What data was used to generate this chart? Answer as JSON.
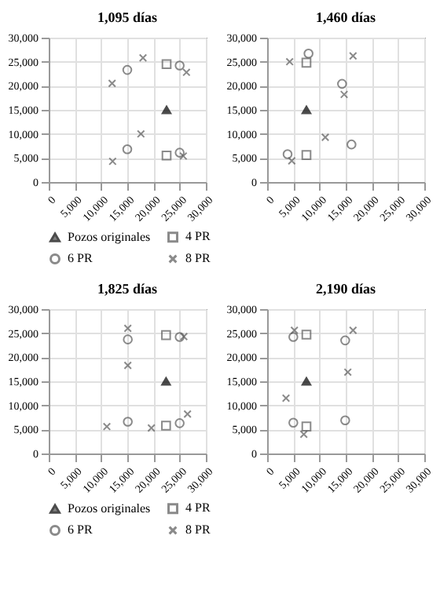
{
  "chart_data": [
    {
      "type": "scatter",
      "title": "1,095 días",
      "xlim": [
        0,
        30000
      ],
      "ylim": [
        0,
        30000
      ],
      "xticks": [
        {
          "value": 0,
          "label": "0"
        },
        {
          "value": 5000,
          "label": "5,000"
        },
        {
          "value": 10000,
          "label": "10,000"
        },
        {
          "value": 15000,
          "label": "15,000"
        },
        {
          "value": 20000,
          "label": "20,000"
        },
        {
          "value": 25000,
          "label": "25,000"
        },
        {
          "value": 30000,
          "label": "30,000"
        }
      ],
      "yticks": [
        {
          "value": 0,
          "label": "0"
        },
        {
          "value": 5000,
          "label": "5,000"
        },
        {
          "value": 10000,
          "label": "10,000"
        },
        {
          "value": 15000,
          "label": "15,000"
        },
        {
          "value": 20000,
          "label": "20,000"
        },
        {
          "value": 25000,
          "label": "25,000"
        },
        {
          "value": 30000,
          "label": "30,000"
        }
      ],
      "grid": true,
      "legend": "bottom",
      "series": [
        {
          "name": "Pozos originales",
          "color": "#000000",
          "marker": "triangle",
          "x": [
            22500
          ],
          "values": [
            15000
          ]
        },
        {
          "name": "4 PR",
          "color": "#595959",
          "marker": "square",
          "x": [
            22500,
            22500
          ],
          "values": [
            24500,
            5500
          ]
        },
        {
          "name": "6 PR",
          "color": "#595959",
          "marker": "circle",
          "x": [
            15000,
            15000,
            25000,
            25000
          ],
          "values": [
            23300,
            6800,
            24200,
            6100
          ]
        },
        {
          "name": "8 PR",
          "color": "#595959",
          "marker": "cross",
          "x": [
            12100,
            18000,
            26300,
            17600,
            12200,
            25700
          ],
          "values": [
            20500,
            25800,
            22800,
            10000,
            4300,
            5400
          ]
        }
      ]
    },
    {
      "type": "scatter",
      "title": "1,460 días",
      "xlim": [
        0,
        30000
      ],
      "ylim": [
        0,
        30000
      ],
      "xticks": [
        {
          "value": 0,
          "label": "0"
        },
        {
          "value": 5000,
          "label": "5,000"
        },
        {
          "value": 10000,
          "label": "10,000"
        },
        {
          "value": 15000,
          "label": "15,000"
        },
        {
          "value": 20000,
          "label": "20,000"
        },
        {
          "value": 25000,
          "label": "25,000"
        },
        {
          "value": 30000,
          "label": "30,000"
        }
      ],
      "yticks": [
        {
          "value": 0,
          "label": "0"
        },
        {
          "value": 5000,
          "label": "5,000"
        },
        {
          "value": 10000,
          "label": "10,000"
        },
        {
          "value": 15000,
          "label": "15,000"
        },
        {
          "value": 20000,
          "label": "20,000"
        },
        {
          "value": 25000,
          "label": "25,000"
        },
        {
          "value": 30000,
          "label": "30,000"
        }
      ],
      "grid": true,
      "legend": "bottom",
      "series": [
        {
          "name": "Pozos originales",
          "color": "#000000",
          "marker": "triangle",
          "x": [
            7500
          ],
          "values": [
            15000
          ]
        },
        {
          "name": "4 PR",
          "color": "#595959",
          "marker": "square",
          "x": [
            7500,
            7500
          ],
          "values": [
            24800,
            5600
          ]
        },
        {
          "name": "6 PR",
          "color": "#595959",
          "marker": "circle",
          "x": [
            7900,
            3900,
            14300,
            16100
          ],
          "values": [
            26700,
            5800,
            20400,
            7800
          ]
        },
        {
          "name": "8 PR",
          "color": "#595959",
          "marker": "cross",
          "x": [
            4300,
            4700,
            14700,
            16400,
            11100
          ],
          "values": [
            25000,
            4400,
            18200,
            26200,
            9300
          ]
        }
      ]
    },
    {
      "type": "scatter",
      "title": "1,825 días",
      "xlim": [
        0,
        30000
      ],
      "ylim": [
        0,
        30000
      ],
      "xticks": [
        {
          "value": 0,
          "label": "0"
        },
        {
          "value": 5000,
          "label": "5,000"
        },
        {
          "value": 10000,
          "label": "10,000"
        },
        {
          "value": 15000,
          "label": "15,000"
        },
        {
          "value": 20000,
          "label": "20,000"
        },
        {
          "value": 25000,
          "label": "25,000"
        },
        {
          "value": 30000,
          "label": "30,000"
        }
      ],
      "yticks": [
        {
          "value": 0,
          "label": "0"
        },
        {
          "value": 5000,
          "label": "5,000"
        },
        {
          "value": 10000,
          "label": "10,000"
        },
        {
          "value": 15000,
          "label": "15,000"
        },
        {
          "value": 20000,
          "label": "20,000"
        },
        {
          "value": 25000,
          "label": "25,000"
        },
        {
          "value": 30000,
          "label": "30,000"
        }
      ],
      "grid": true,
      "legend": "bottom",
      "series": [
        {
          "name": "Pozos originales",
          "color": "#000000",
          "marker": "triangle",
          "x": [
            22400
          ],
          "values": [
            15000
          ]
        },
        {
          "name": "4 PR",
          "color": "#595959",
          "marker": "square",
          "x": [
            22400,
            22400
          ],
          "values": [
            24600,
            5800
          ]
        },
        {
          "name": "6 PR",
          "color": "#595959",
          "marker": "circle",
          "x": [
            15100,
            25000,
            25000,
            15100
          ],
          "values": [
            23700,
            24200,
            6300,
            6600
          ]
        },
        {
          "name": "8 PR",
          "color": "#595959",
          "marker": "cross",
          "x": [
            15100,
            15100,
            25800,
            26500,
            19600,
            11100
          ],
          "values": [
            26000,
            18300,
            24300,
            8200,
            5300,
            5600
          ]
        }
      ]
    },
    {
      "type": "scatter",
      "title": "2,190 días",
      "xlim": [
        0,
        30000
      ],
      "ylim": [
        0,
        30000
      ],
      "xticks": [
        {
          "value": 0,
          "label": "0"
        },
        {
          "value": 5000,
          "label": "5,000"
        },
        {
          "value": 10000,
          "label": "10,000"
        },
        {
          "value": 15000,
          "label": "15,000"
        },
        {
          "value": 20000,
          "label": "20,000"
        },
        {
          "value": 25000,
          "label": "25,000"
        },
        {
          "value": 30000,
          "label": "30,000"
        }
      ],
      "yticks": [
        {
          "value": 0,
          "label": "0"
        },
        {
          "value": 5000,
          "label": "5,000"
        },
        {
          "value": 10000,
          "label": "10,000"
        },
        {
          "value": 15000,
          "label": "15,000"
        },
        {
          "value": 20000,
          "label": "20,000"
        },
        {
          "value": 25000,
          "label": "25,000"
        },
        {
          "value": 30000,
          "label": "30,000"
        }
      ],
      "grid": true,
      "legend": "bottom",
      "series": [
        {
          "name": "Pozos originales",
          "color": "#000000",
          "marker": "triangle",
          "x": [
            7500
          ],
          "values": [
            15000
          ]
        },
        {
          "name": "4 PR",
          "color": "#595959",
          "marker": "square",
          "x": [
            7500,
            7500
          ],
          "values": [
            24700,
            5600
          ]
        },
        {
          "name": "6 PR",
          "color": "#595959",
          "marker": "circle",
          "x": [
            5000,
            14900,
            5000,
            14900
          ],
          "values": [
            24200,
            23500,
            6400,
            6900
          ]
        },
        {
          "name": "8 PR",
          "color": "#595959",
          "marker": "cross",
          "x": [
            5200,
            16400,
            3600,
            15400,
            7000
          ],
          "values": [
            25600,
            25600,
            11500,
            16900,
            4000
          ]
        }
      ]
    }
  ]
}
